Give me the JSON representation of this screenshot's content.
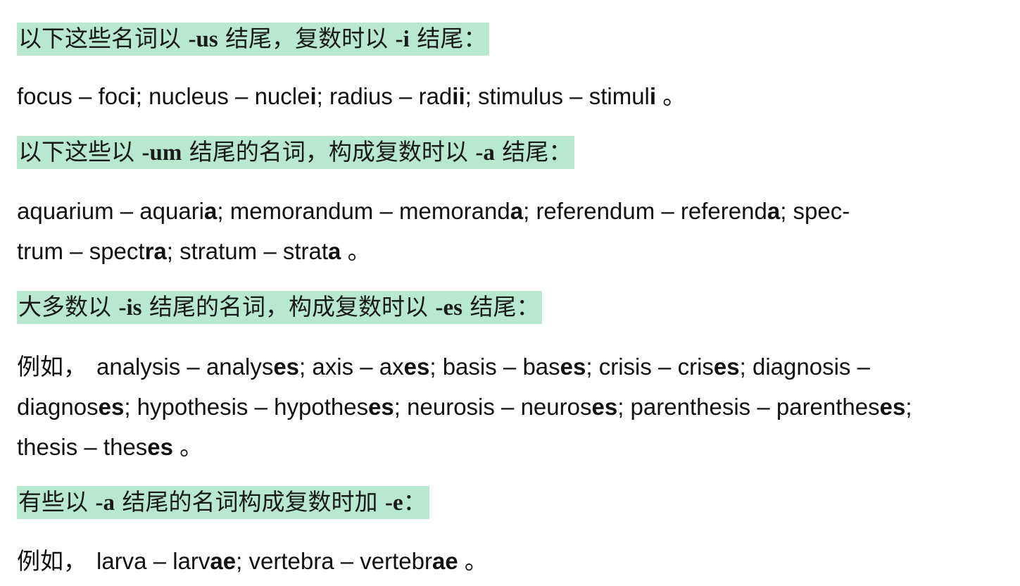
{
  "sections": [
    {
      "heading_pre": "以下这些名词以 ",
      "heading_mark": "-us",
      "heading_mid": " 结尾，复数时以 ",
      "heading_mark2": "-i",
      "heading_post": " 结尾：",
      "lead": "",
      "examples": [
        {
          "base": "focus",
          "stem": "foc",
          "end": "i",
          "sep": "; "
        },
        {
          "base": "nucleus",
          "stem": "nucle",
          "end": "i",
          "sep": "; "
        },
        {
          "base": "radius",
          "stem": "rad",
          "end": "ii",
          "sep": "; "
        },
        {
          "base": "stimulus",
          "stem": "stimul",
          "end": "i",
          "sep": " 。"
        }
      ]
    },
    {
      "heading_pre": "以下这些以 ",
      "heading_mark": "-um",
      "heading_mid": " 结尾的名词，构成复数时以 ",
      "heading_mark2": "-a",
      "heading_post": " 结尾："
    },
    {
      "heading_pre": "大多数以 ",
      "heading_mark": "-is",
      "heading_mid": " 结尾的名词，构成复数时以 ",
      "heading_mark2": "-es",
      "heading_post": " 结尾："
    },
    {
      "heading_pre": "有些以 ",
      "heading_mark": "-a",
      "heading_mid": " 结尾的名词构成复数时加 ",
      "heading_mark2": "-e",
      "heading_post": "："
    }
  ],
  "um_lines": [
    [
      {
        "base": "aquarium",
        "stem": "aquari",
        "end": "a",
        "sep": "; "
      },
      {
        "base": "memorandum",
        "stem": "memorand",
        "end": "a",
        "sep": "; "
      },
      {
        "base": "referendum",
        "stem": "referend",
        "end": "a",
        "sep": "; "
      },
      {
        "base": "spec-",
        "stem": "",
        "end": "",
        "sep": ""
      }
    ],
    [
      {
        "base": "trum",
        "stem": "spect",
        "end": "ra",
        "sep": "; "
      },
      {
        "base": "stratum",
        "stem": "strat",
        "end": "a",
        "sep": " 。"
      }
    ]
  ],
  "is_lead": "例如，",
  "is_lines": [
    [
      {
        "base": "analysis",
        "stem": "analys",
        "end": "es",
        "sep": "; "
      },
      {
        "base": "axis",
        "stem": "ax",
        "end": "es",
        "sep": "; "
      },
      {
        "base": "basis",
        "stem": "bas",
        "end": "es",
        "sep": "; "
      },
      {
        "base": "crisis",
        "stem": "cris",
        "end": "es",
        "sep": "; "
      },
      {
        "base": "diagnosis",
        "stem": "",
        "end": "",
        "sep": " –"
      }
    ],
    [
      {
        "base": "",
        "stem": "diagnos",
        "end": "es",
        "sep": "; "
      },
      {
        "base": "hypothesis",
        "stem": "hypothes",
        "end": "es",
        "sep": "; "
      },
      {
        "base": "neurosis",
        "stem": "neuros",
        "end": "es",
        "sep": "; "
      },
      {
        "base": "parenthesis",
        "stem": "parenthes",
        "end": "es",
        "sep": ";"
      }
    ],
    [
      {
        "base": "thesis",
        "stem": "thes",
        "end": "es",
        "sep": " 。"
      }
    ]
  ],
  "a_lead": "例如，",
  "a_lines": [
    [
      {
        "base": "larva",
        "stem": "larv",
        "end": "ae",
        "sep": "; "
      },
      {
        "base": "vertebra",
        "stem": "vertebr",
        "end": "ae",
        "sep": " 。"
      }
    ]
  ],
  "dash": " – "
}
